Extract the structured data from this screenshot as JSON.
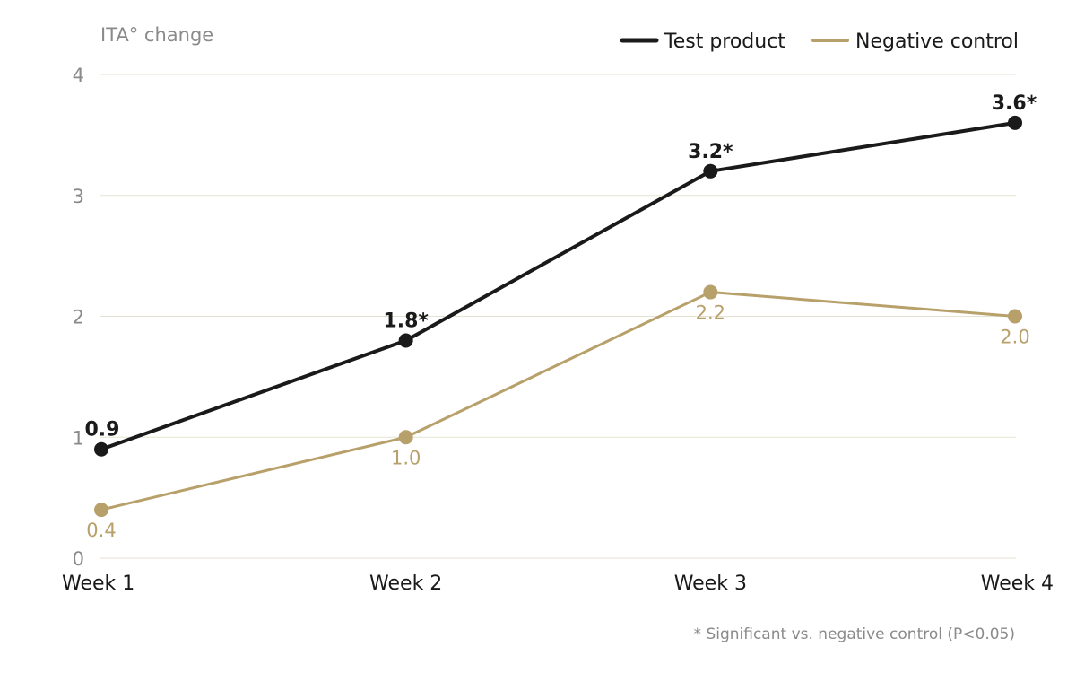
{
  "chart_data": {
    "type": "line",
    "ylabel": "ITA° change",
    "categories": [
      "Week 1",
      "Week 2",
      "Week 3",
      "Week 4"
    ],
    "ylim": [
      0,
      4
    ],
    "yticks": [
      0,
      1,
      2,
      3,
      4
    ],
    "grid": true,
    "legend_position": "top-right",
    "series": [
      {
        "name": "Test product",
        "color": "#1a1a1a",
        "values": [
          0.9,
          1.8,
          3.2,
          3.6
        ],
        "labels": [
          "0.9",
          "1.8*",
          "3.2*",
          "3.6*"
        ]
      },
      {
        "name": "Negative control",
        "color": "#b8a06a",
        "values": [
          0.4,
          1.0,
          2.2,
          2.0
        ],
        "labels": [
          "0.4",
          "1.0",
          "2.2",
          "2.0"
        ]
      }
    ],
    "footnote": "* Significant vs. negative control (P<0.05)"
  }
}
